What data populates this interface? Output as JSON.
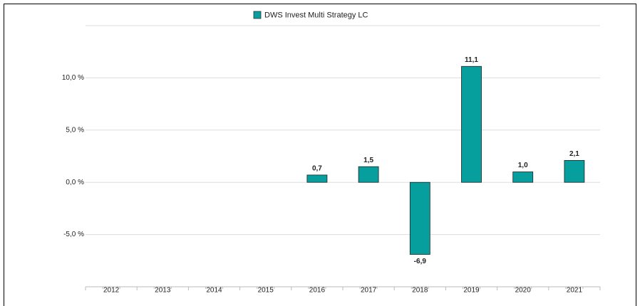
{
  "chart_data": {
    "type": "bar",
    "legend": "DWS Invest Multi Strategy  LC",
    "color": "#079e9e",
    "categories": [
      "2012",
      "2013",
      "2014",
      "2015",
      "2016",
      "2017",
      "2018",
      "2019",
      "2020",
      "2021"
    ],
    "values": [
      null,
      null,
      null,
      null,
      0.7,
      1.5,
      -6.9,
      11.1,
      1.0,
      2.1
    ],
    "value_labels": [
      null,
      null,
      null,
      null,
      "0,7",
      "1,5",
      "-6,9",
      "11,1",
      "1,0",
      "2,1"
    ],
    "ylim": [
      -10,
      15
    ],
    "yticks": [
      {
        "value": -5,
        "label": "-5,0 %"
      },
      {
        "value": 0,
        "label": "0,0 %"
      },
      {
        "value": 5,
        "label": "5,0 %"
      },
      {
        "value": 10,
        "label": "10,0 %"
      }
    ],
    "grid": true
  }
}
